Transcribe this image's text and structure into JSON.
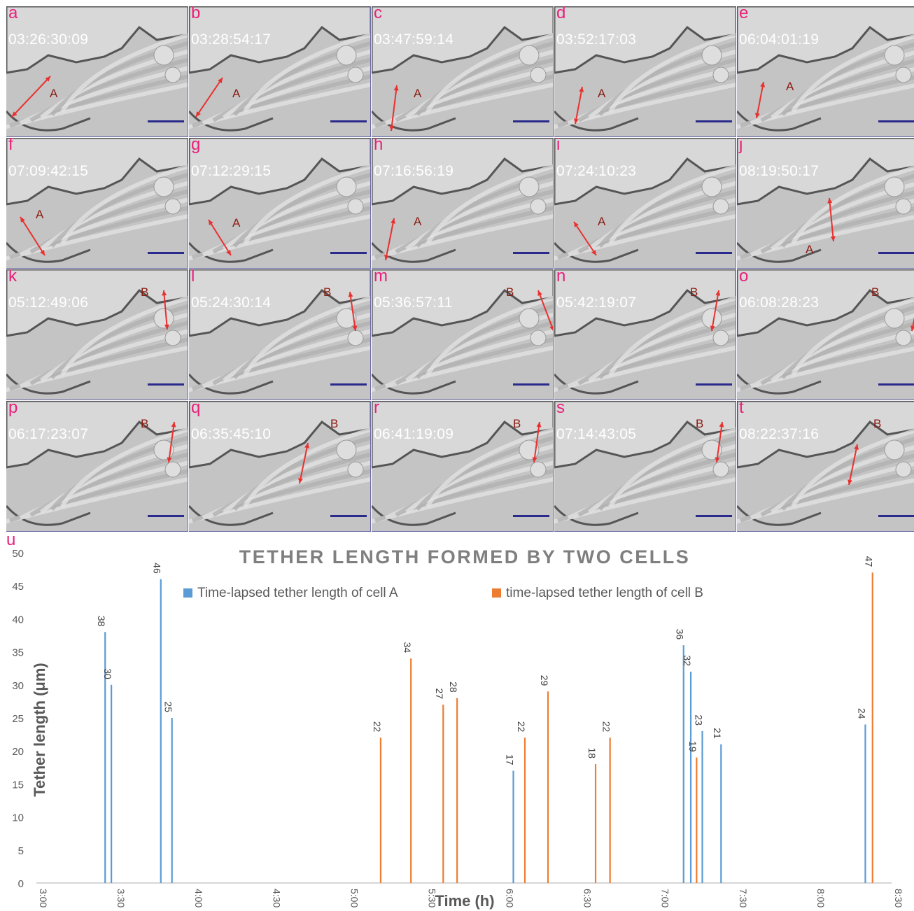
{
  "panels": [
    {
      "letter": "a",
      "time": "03:26:30:09",
      "cell": "A"
    },
    {
      "letter": "b",
      "time": "03:28:54:17",
      "cell": "A"
    },
    {
      "letter": "c",
      "time": "03:47:59:14",
      "cell": "A"
    },
    {
      "letter": "d",
      "time": "03:52:17:03",
      "cell": "A"
    },
    {
      "letter": "e",
      "time": "06:04:01:19",
      "cell": "A"
    },
    {
      "letter": "f",
      "time": "07:09:42:15",
      "cell": "A"
    },
    {
      "letter": "g",
      "time": "07:12:29:15",
      "cell": "A"
    },
    {
      "letter": "h",
      "time": "07:16:56:19",
      "cell": "A"
    },
    {
      "letter": "i",
      "time": "07:24:10:23",
      "cell": "A"
    },
    {
      "letter": "j",
      "time": "08:19:50:17",
      "cell": "A"
    },
    {
      "letter": "k",
      "time": "05:12:49:06",
      "cell": "B"
    },
    {
      "letter": "l",
      "time": "05:24:30:14",
      "cell": "B"
    },
    {
      "letter": "m",
      "time": "05:36:57:11",
      "cell": "B"
    },
    {
      "letter": "n",
      "time": "05:42:19:07",
      "cell": "B"
    },
    {
      "letter": "o",
      "time": "06:08:28:23",
      "cell": "B"
    },
    {
      "letter": "p",
      "time": "06:17:23:07",
      "cell": "B"
    },
    {
      "letter": "q",
      "time": "06:35:45:10",
      "cell": "B"
    },
    {
      "letter": "r",
      "time": "06:41:19:09",
      "cell": "B"
    },
    {
      "letter": "s",
      "time": "07:14:43:05",
      "cell": "B"
    },
    {
      "letter": "t",
      "time": "08:22:37:16",
      "cell": "B"
    }
  ],
  "chart_panel_letter": "u",
  "colors": {
    "cellA": "#5b9bd5",
    "cellB": "#ed7d31",
    "panel_letter": "#e8207a",
    "arrow": "#e8312f",
    "scalebar": "#2a2a8c"
  },
  "chart_data": {
    "type": "bar",
    "title": "TETHER LENGTH FORMED BY TWO CELLS",
    "xlabel": "Time (h)",
    "ylabel": "Tether length (μm)",
    "ylim": [
      0,
      50
    ],
    "yticks": [
      0,
      5,
      10,
      15,
      20,
      25,
      30,
      35,
      40,
      45,
      50
    ],
    "xlim": [
      "3:00",
      "8:30"
    ],
    "xticks": [
      "3:00",
      "3:30",
      "4:00",
      "4:30",
      "5:00",
      "5:30",
      "6:00",
      "6:30",
      "7:00",
      "7:30",
      "8:00",
      "8:30"
    ],
    "grid": false,
    "legend_position": "top",
    "series": [
      {
        "name": "Time-lapsed tether length of cell A",
        "points": [
          {
            "x": "03:26:30",
            "y": 38
          },
          {
            "x": "03:28:54",
            "y": 30
          },
          {
            "x": "03:47:59",
            "y": 46
          },
          {
            "x": "03:52:17",
            "y": 25
          },
          {
            "x": "06:04:01",
            "y": 17
          },
          {
            "x": "07:09:42",
            "y": 36
          },
          {
            "x": "07:12:29",
            "y": 32
          },
          {
            "x": "07:16:56",
            "y": 23
          },
          {
            "x": "07:24:10",
            "y": 21
          },
          {
            "x": "08:19:50",
            "y": 24
          }
        ]
      },
      {
        "name": "time-lapsed tether length of cell B",
        "points": [
          {
            "x": "05:12:49",
            "y": 22
          },
          {
            "x": "05:24:30",
            "y": 34
          },
          {
            "x": "05:36:57",
            "y": 27
          },
          {
            "x": "05:42:19",
            "y": 28
          },
          {
            "x": "06:08:28",
            "y": 22
          },
          {
            "x": "06:17:23",
            "y": 29
          },
          {
            "x": "06:35:45",
            "y": 18
          },
          {
            "x": "06:41:19",
            "y": 22
          },
          {
            "x": "07:14:43",
            "y": 19
          },
          {
            "x": "08:22:37",
            "y": 47
          }
        ]
      }
    ]
  }
}
